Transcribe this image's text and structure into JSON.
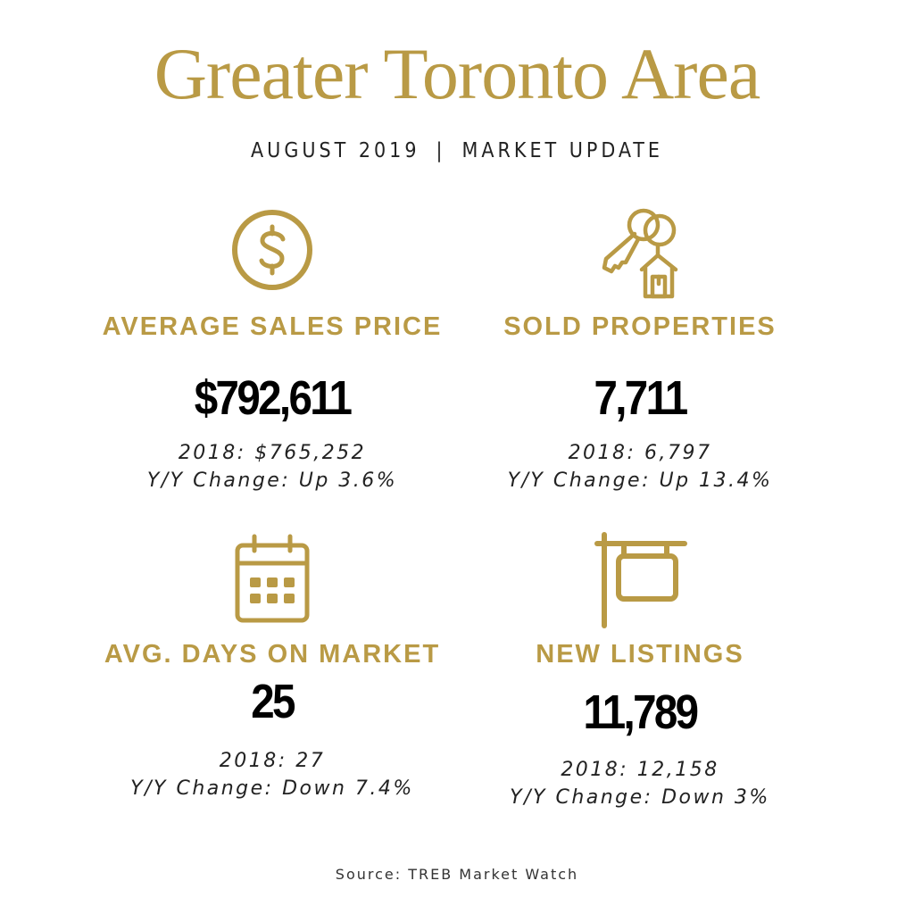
{
  "header": {
    "title": "Greater Toronto Area",
    "subtitle_left": "AUGUST 2019",
    "subtitle_sep": "|",
    "subtitle_right": "MARKET UPDATE"
  },
  "accent_color": "#b99a45",
  "stats": [
    {
      "icon": "dollar-circle-icon",
      "label": "AVERAGE SALES PRICE",
      "value": "$792,611",
      "prev": "2018: $765,252",
      "change": "Y/Y Change: Up 3.6%"
    },
    {
      "icon": "keys-house-icon",
      "label": "SOLD PROPERTIES",
      "value": "7,711",
      "prev": "2018: 6,797",
      "change": "Y/Y Change: Up 13.4%"
    },
    {
      "icon": "calendar-icon",
      "label": "AVG. DAYS ON MARKET",
      "value": "25",
      "prev": "2018: 27",
      "change": "Y/Y Change: Down 7.4%"
    },
    {
      "icon": "for-sale-sign-icon",
      "label": "NEW LISTINGS",
      "value": "11,789",
      "prev": "2018: 12,158",
      "change": "Y/Y Change: Down 3%"
    }
  ],
  "footer": {
    "source": "Source: TREB Market Watch"
  }
}
